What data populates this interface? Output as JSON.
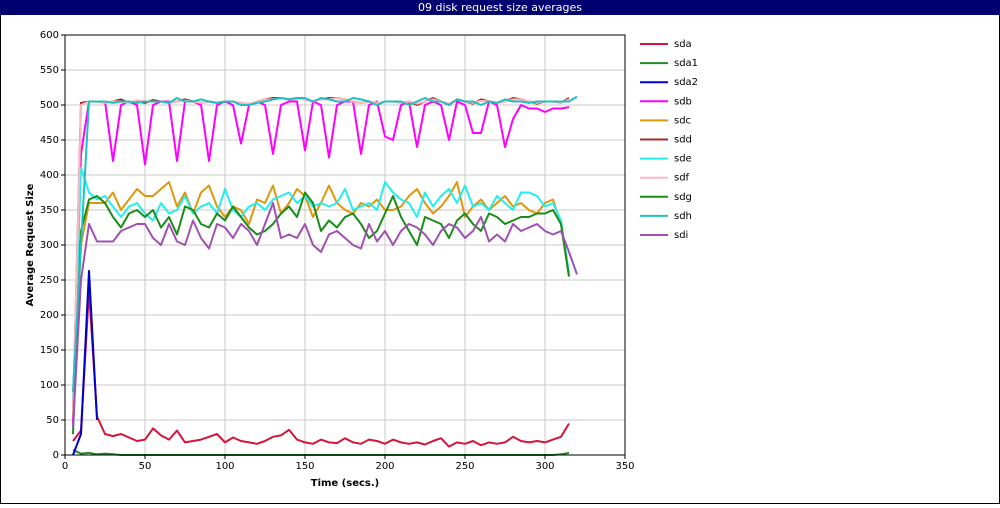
{
  "chart_data": {
    "type": "line",
    "title": "09 disk request size averages",
    "x_label": "Time (secs.)",
    "y_label": "Average Request Size",
    "xlim": [
      0,
      350
    ],
    "xticks": [
      0,
      50,
      100,
      150,
      200,
      250,
      300,
      350
    ],
    "ylim": [
      0,
      600
    ],
    "yticks": [
      0,
      50,
      100,
      150,
      200,
      250,
      300,
      350,
      400,
      450,
      500,
      550,
      600
    ],
    "grid": true,
    "legend": "right",
    "x": [
      5,
      10,
      15,
      20,
      25,
      30,
      35,
      40,
      45,
      50,
      55,
      60,
      65,
      70,
      75,
      80,
      85,
      90,
      95,
      100,
      105,
      110,
      115,
      120,
      125,
      130,
      135,
      140,
      145,
      150,
      155,
      160,
      165,
      170,
      175,
      180,
      185,
      190,
      195,
      200,
      205,
      210,
      215,
      220,
      225,
      230,
      235,
      240,
      245,
      250,
      255,
      260,
      265,
      270,
      275,
      280,
      285,
      290,
      295,
      300,
      305,
      310,
      315,
      320
    ],
    "series": [
      {
        "name": "sda",
        "color": "#d4143c",
        "values": [
          20,
          35,
          235,
          55,
          30,
          27,
          30,
          25,
          20,
          22,
          38,
          28,
          22,
          35,
          18,
          20,
          22,
          26,
          30,
          18,
          25,
          20,
          18,
          16,
          20,
          26,
          28,
          36,
          22,
          18,
          16,
          22,
          18,
          17,
          24,
          18,
          16,
          22,
          20,
          16,
          22,
          18,
          16,
          18,
          15,
          20,
          24,
          12,
          18,
          16,
          20,
          14,
          18,
          16,
          18,
          26,
          20,
          18,
          20,
          18,
          22,
          26,
          45,
          null
        ]
      },
      {
        "name": "sda1",
        "color": "#228b22",
        "values": [
          7,
          2,
          3,
          1,
          2,
          1,
          0,
          0,
          0,
          0,
          0,
          0,
          0,
          0,
          0,
          0,
          0,
          0,
          0,
          0,
          0,
          0,
          0,
          0,
          0,
          0,
          0,
          0,
          0,
          0,
          0,
          0,
          0,
          0,
          0,
          0,
          0,
          0,
          0,
          0,
          0,
          0,
          0,
          0,
          0,
          0,
          0,
          0,
          0,
          0,
          0,
          0,
          0,
          0,
          0,
          0,
          0,
          0,
          0,
          0,
          0,
          1,
          3,
          null
        ]
      },
      {
        "name": "sda2",
        "color": "#0000cd",
        "values": [
          0,
          30,
          263,
          50,
          null,
          null,
          null,
          null,
          null,
          null,
          null,
          null,
          null,
          null,
          null,
          null,
          null,
          null,
          null,
          null,
          null,
          null,
          null,
          null,
          null,
          null,
          null,
          null,
          null,
          null,
          null,
          null,
          null,
          null,
          null,
          null,
          null,
          null,
          null,
          null,
          null,
          null,
          null,
          null,
          null,
          null,
          null,
          null,
          null,
          null,
          null,
          null,
          null,
          null,
          null,
          null,
          null,
          null,
          null,
          null,
          null,
          null,
          null,
          null
        ]
      },
      {
        "name": "sdb",
        "color": "#ff00ff",
        "values": [
          45,
          430,
          505,
          505,
          505,
          420,
          500,
          505,
          500,
          415,
          500,
          505,
          505,
          420,
          505,
          505,
          500,
          420,
          500,
          505,
          500,
          445,
          500,
          505,
          500,
          430,
          500,
          505,
          505,
          435,
          505,
          500,
          425,
          500,
          505,
          505,
          430,
          500,
          505,
          455,
          450,
          500,
          505,
          440,
          500,
          505,
          500,
          450,
          505,
          500,
          460,
          460,
          505,
          500,
          440,
          480,
          500,
          495,
          495,
          490,
          495,
          495,
          497,
          null
        ]
      },
      {
        "name": "sdc",
        "color": "#e0960b",
        "values": [
          60,
          300,
          360,
          360,
          360,
          375,
          350,
          365,
          380,
          370,
          370,
          380,
          390,
          355,
          375,
          345,
          375,
          385,
          355,
          340,
          355,
          350,
          330,
          365,
          360,
          385,
          345,
          360,
          380,
          370,
          340,
          360,
          385,
          360,
          350,
          345,
          360,
          355,
          365,
          350,
          350,
          355,
          370,
          380,
          360,
          345,
          355,
          370,
          390,
          340,
          355,
          365,
          350,
          360,
          370,
          355,
          360,
          350,
          345,
          360,
          365,
          330,
          255,
          null
        ]
      },
      {
        "name": "sdd",
        "color": "#a52a2a",
        "values": [
          60,
          503,
          505,
          505,
          503,
          505,
          508,
          503,
          505,
          503,
          507,
          505,
          503,
          505,
          508,
          505,
          503,
          505,
          503,
          505,
          505,
          503,
          500,
          505,
          508,
          510,
          510,
          508,
          510,
          508,
          505,
          508,
          510,
          510,
          508,
          505,
          503,
          505,
          502,
          505,
          505,
          503,
          505,
          500,
          505,
          510,
          505,
          500,
          508,
          505,
          502,
          508,
          505,
          503,
          505,
          510,
          508,
          505,
          502,
          505,
          505,
          503,
          510,
          null
        ]
      },
      {
        "name": "sde",
        "color": "#22eeee",
        "values": [
          80,
          410,
          375,
          365,
          370,
          355,
          340,
          355,
          360,
          345,
          335,
          360,
          345,
          350,
          370,
          345,
          355,
          360,
          345,
          380,
          350,
          340,
          355,
          360,
          350,
          365,
          370,
          375,
          360,
          370,
          355,
          360,
          355,
          360,
          380,
          350,
          355,
          360,
          350,
          390,
          375,
          365,
          360,
          340,
          375,
          355,
          370,
          380,
          360,
          385,
          355,
          360,
          350,
          370,
          360,
          350,
          375,
          375,
          370,
          355,
          360,
          335,
          260,
          null
        ]
      },
      {
        "name": "sdf",
        "color": "#ffb6c1",
        "values": [
          60,
          500,
          505,
          505,
          503,
          505,
          505,
          503,
          507,
          505,
          505,
          505,
          503,
          505,
          506,
          505,
          503,
          505,
          503,
          505,
          505,
          503,
          502,
          505,
          508,
          508,
          510,
          508,
          508,
          508,
          505,
          508,
          508,
          510,
          508,
          505,
          503,
          505,
          503,
          505,
          505,
          503,
          505,
          502,
          505,
          508,
          505,
          502,
          508,
          505,
          503,
          506,
          505,
          503,
          505,
          508,
          508,
          505,
          503,
          505,
          505,
          503,
          508,
          null
        ]
      },
      {
        "name": "sdg",
        "color": "#1a8c1a",
        "values": [
          30,
          320,
          365,
          370,
          360,
          340,
          325,
          345,
          350,
          340,
          350,
          325,
          340,
          315,
          355,
          350,
          330,
          325,
          345,
          335,
          355,
          340,
          325,
          315,
          320,
          330,
          345,
          355,
          340,
          375,
          360,
          320,
          335,
          325,
          340,
          345,
          330,
          310,
          320,
          345,
          370,
          340,
          320,
          300,
          340,
          335,
          330,
          310,
          335,
          345,
          330,
          320,
          345,
          340,
          330,
          335,
          340,
          340,
          345,
          345,
          350,
          330,
          255,
          null
        ]
      },
      {
        "name": "sdh",
        "color": "#20c0c0",
        "values": [
          90,
          300,
          505,
          505,
          505,
          503,
          505,
          505,
          503,
          505,
          505,
          505,
          503,
          510,
          505,
          505,
          508,
          505,
          503,
          505,
          505,
          500,
          500,
          503,
          505,
          508,
          510,
          508,
          510,
          510,
          505,
          510,
          508,
          505,
          505,
          510,
          508,
          505,
          500,
          505,
          505,
          505,
          500,
          505,
          510,
          505,
          505,
          500,
          508,
          505,
          505,
          500,
          505,
          503,
          508,
          505,
          505,
          503,
          505,
          505,
          505,
          505,
          505,
          512
        ]
      },
      {
        "name": "sdi",
        "color": "#a050b0",
        "values": [
          40,
          250,
          330,
          305,
          305,
          305,
          320,
          325,
          330,
          330,
          310,
          300,
          330,
          305,
          300,
          335,
          310,
          295,
          330,
          325,
          310,
          330,
          320,
          300,
          330,
          360,
          310,
          315,
          310,
          330,
          300,
          290,
          315,
          320,
          310,
          300,
          295,
          330,
          305,
          320,
          300,
          320,
          330,
          325,
          315,
          300,
          320,
          330,
          325,
          310,
          320,
          340,
          305,
          315,
          305,
          330,
          320,
          325,
          330,
          320,
          315,
          320,
          290,
          258
        ]
      }
    ]
  }
}
